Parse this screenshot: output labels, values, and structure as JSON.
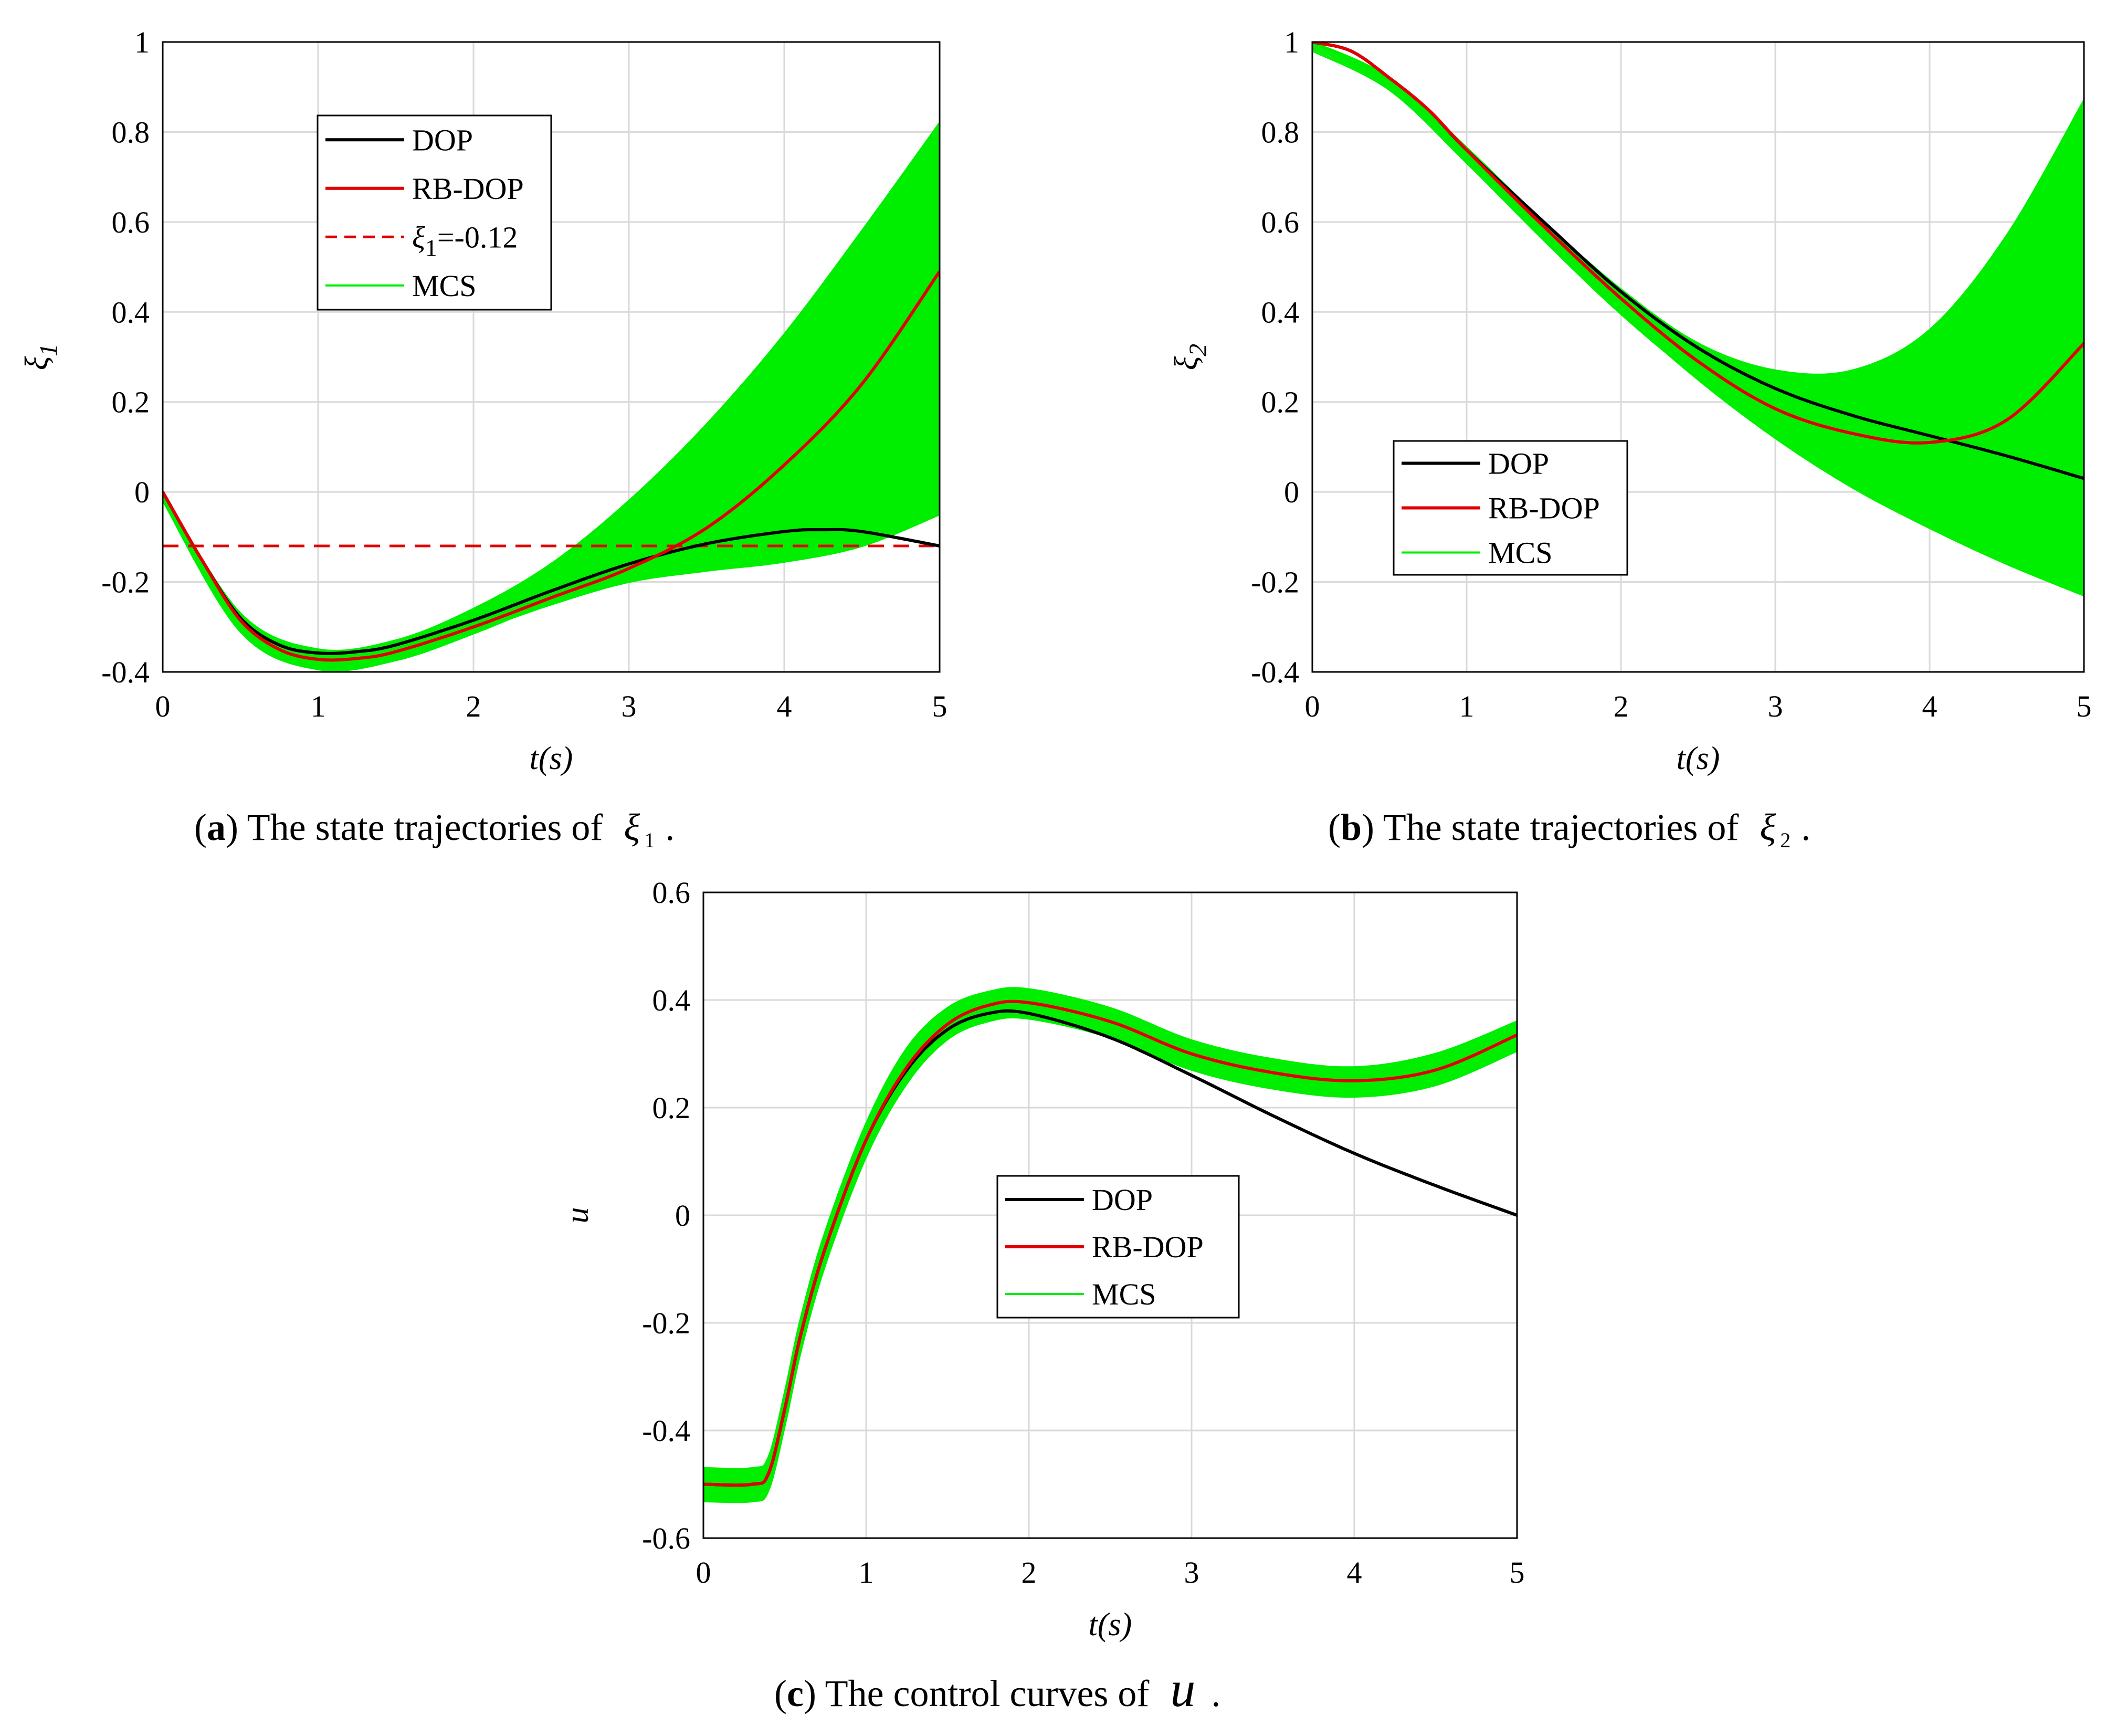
{
  "colors": {
    "dop": "#000000",
    "rbdop": "#e00000",
    "mcs": "#00ee00",
    "constraint": "#e00000",
    "grid": "#d9d9d9"
  },
  "chart_data": [
    {
      "id": "a",
      "type": "line",
      "xlabel": "t(s)",
      "ylabel_symbol": "ξ",
      "ylabel_sub": "1",
      "xlim": [
        0,
        5
      ],
      "ylim": [
        -0.4,
        1
      ],
      "xticks": [
        "0",
        "1",
        "2",
        "3",
        "4",
        "5"
      ],
      "yticks": [
        "-0.4",
        "-0.2",
        "0",
        "0.2",
        "0.4",
        "0.6",
        "0.8",
        "1"
      ],
      "legend_position": "upper-left-inside",
      "legend": [
        {
          "label": "DOP",
          "style": "solid-black"
        },
        {
          "label": "RB-DOP",
          "style": "solid-red"
        },
        {
          "label_symbol": "ξ",
          "label_sub": "1",
          "label_suffix": "=-0.12",
          "style": "dashed-red"
        },
        {
          "label": "MCS",
          "style": "solid-green"
        }
      ],
      "series": [
        {
          "name": "DOP",
          "x": [
            0,
            0.25,
            0.5,
            0.75,
            1.0,
            1.25,
            1.5,
            2.0,
            2.5,
            3.0,
            3.5,
            4.0,
            4.25,
            4.5,
            5.0
          ],
          "y": [
            0,
            -0.15,
            -0.28,
            -0.34,
            -0.358,
            -0.355,
            -0.34,
            -0.285,
            -0.22,
            -0.16,
            -0.115,
            -0.088,
            -0.084,
            -0.088,
            -0.12
          ]
        },
        {
          "name": "RB-DOP",
          "x": [
            0,
            0.25,
            0.5,
            0.75,
            1.0,
            1.25,
            1.5,
            2.0,
            2.5,
            3.0,
            3.5,
            4.0,
            4.5,
            5.0
          ],
          "y": [
            0,
            -0.15,
            -0.285,
            -0.35,
            -0.372,
            -0.37,
            -0.355,
            -0.3,
            -0.235,
            -0.17,
            -0.08,
            0.06,
            0.24,
            0.49
          ]
        },
        {
          "name": "MCS-upper",
          "x": [
            0,
            0.5,
            1.0,
            1.5,
            2.0,
            2.5,
            3.0,
            3.5,
            4.0,
            4.5,
            5.0
          ],
          "y": [
            0,
            -0.27,
            -0.35,
            -0.33,
            -0.26,
            -0.16,
            -0.02,
            0.15,
            0.35,
            0.58,
            0.82
          ]
        },
        {
          "name": "MCS-lower",
          "x": [
            0,
            0.5,
            1.0,
            1.5,
            2.0,
            2.5,
            3.0,
            3.5,
            4.0,
            4.5,
            5.0
          ],
          "y": [
            0,
            -0.3,
            -0.385,
            -0.365,
            -0.31,
            -0.25,
            -0.2,
            -0.175,
            -0.155,
            -0.12,
            -0.05
          ]
        },
        {
          "name": "constraint",
          "x": [
            0,
            5
          ],
          "y": [
            -0.12,
            -0.12
          ]
        }
      ],
      "caption_prefix": "(",
      "caption_letter": "a",
      "caption_text": ") The state trajectories of",
      "caption_symbol": "ξ",
      "caption_sub": "1",
      "caption_end": "."
    },
    {
      "id": "b",
      "type": "line",
      "xlabel": "t(s)",
      "ylabel_symbol": "ξ",
      "ylabel_sub": "2",
      "xlim": [
        0,
        5
      ],
      "ylim": [
        -0.4,
        1
      ],
      "xticks": [
        "0",
        "1",
        "2",
        "3",
        "4",
        "5"
      ],
      "yticks": [
        "-0.4",
        "-0.2",
        "0",
        "0.2",
        "0.4",
        "0.6",
        "0.8",
        "1"
      ],
      "legend_position": "lower-left-inside",
      "legend": [
        {
          "label": "DOP",
          "style": "solid-black"
        },
        {
          "label": "RB-DOP",
          "style": "solid-red"
        },
        {
          "label": "MCS",
          "style": "solid-green"
        }
      ],
      "series": [
        {
          "name": "DOP",
          "x": [
            0,
            0.25,
            0.5,
            0.75,
            1.0,
            1.5,
            2.0,
            2.5,
            3.0,
            3.5,
            4.0,
            4.5,
            5.0
          ],
          "y": [
            1.0,
            0.98,
            0.92,
            0.85,
            0.76,
            0.6,
            0.445,
            0.32,
            0.23,
            0.17,
            0.125,
            0.08,
            0.03
          ]
        },
        {
          "name": "RB-DOP",
          "x": [
            0,
            0.25,
            0.5,
            0.75,
            1.0,
            1.5,
            2.0,
            2.5,
            3.0,
            3.5,
            4.0,
            4.5,
            5.0
          ],
          "y": [
            1.0,
            0.98,
            0.92,
            0.85,
            0.76,
            0.59,
            0.43,
            0.29,
            0.185,
            0.13,
            0.11,
            0.16,
            0.33
          ]
        },
        {
          "name": "MCS-upper",
          "x": [
            0,
            0.5,
            1.0,
            1.5,
            2.0,
            2.5,
            3.0,
            3.5,
            4.0,
            4.5,
            5.0
          ],
          "y": [
            1.0,
            0.92,
            0.765,
            0.6,
            0.45,
            0.33,
            0.27,
            0.27,
            0.36,
            0.57,
            0.87
          ]
        },
        {
          "name": "MCS-lower",
          "x": [
            0,
            0.5,
            1.0,
            1.5,
            2.0,
            2.5,
            3.0,
            3.5,
            4.0,
            4.5,
            5.0
          ],
          "y": [
            1.0,
            0.91,
            0.745,
            0.57,
            0.4,
            0.25,
            0.12,
            0.01,
            -0.08,
            -0.16,
            -0.23
          ]
        }
      ],
      "caption_prefix": "(",
      "caption_letter": "b",
      "caption_text": ") The state trajectories of",
      "caption_symbol": "ξ",
      "caption_sub": "2",
      "caption_end": "."
    },
    {
      "id": "c",
      "type": "line",
      "xlabel": "t(s)",
      "ylabel_symbol": "u",
      "ylabel_sub": "",
      "xlim": [
        0,
        5
      ],
      "ylim": [
        -0.6,
        0.6
      ],
      "xticks": [
        "0",
        "1",
        "2",
        "3",
        "4",
        "5"
      ],
      "yticks": [
        "-0.6",
        "-0.4",
        "-0.2",
        "0",
        "0.2",
        "0.4",
        "0.6"
      ],
      "legend_position": "center-inside",
      "legend": [
        {
          "label": "DOP",
          "style": "solid-black"
        },
        {
          "label": "RB-DOP",
          "style": "solid-red"
        },
        {
          "label": "MCS",
          "style": "solid-green"
        }
      ],
      "series": [
        {
          "name": "DOP",
          "x": [
            0,
            0.3,
            0.4,
            0.5,
            0.6,
            0.75,
            1.0,
            1.25,
            1.5,
            1.75,
            2.0,
            2.5,
            3.0,
            3.5,
            4.0,
            4.5,
            5.0
          ],
          "y": [
            -0.5,
            -0.5,
            -0.48,
            -0.36,
            -0.22,
            -0.06,
            0.14,
            0.27,
            0.345,
            0.375,
            0.375,
            0.33,
            0.26,
            0.185,
            0.115,
            0.055,
            0.0
          ]
        },
        {
          "name": "RB-DOP",
          "x": [
            0,
            0.3,
            0.4,
            0.5,
            0.6,
            0.75,
            1.0,
            1.25,
            1.5,
            1.75,
            2.0,
            2.5,
            3.0,
            3.5,
            4.0,
            4.5,
            5.0
          ],
          "y": [
            -0.5,
            -0.5,
            -0.48,
            -0.36,
            -0.22,
            -0.06,
            0.14,
            0.275,
            0.355,
            0.39,
            0.395,
            0.36,
            0.3,
            0.265,
            0.25,
            0.27,
            0.335
          ]
        },
        {
          "name": "MCS-upper",
          "x": [
            0,
            0.3,
            0.4,
            0.5,
            0.6,
            0.75,
            1.0,
            1.25,
            1.5,
            1.75,
            2.0,
            2.5,
            3.0,
            3.5,
            4.0,
            4.5,
            5.0
          ],
          "y": [
            -0.47,
            -0.47,
            -0.45,
            -0.33,
            -0.19,
            -0.03,
            0.17,
            0.31,
            0.385,
            0.415,
            0.42,
            0.385,
            0.325,
            0.29,
            0.275,
            0.3,
            0.36
          ]
        },
        {
          "name": "MCS-lower",
          "x": [
            0,
            0.3,
            0.4,
            0.5,
            0.6,
            0.75,
            1.0,
            1.25,
            1.5,
            1.75,
            2.0,
            2.5,
            3.0,
            3.5,
            4.0,
            4.5,
            5.0
          ],
          "y": [
            -0.53,
            -0.53,
            -0.51,
            -0.39,
            -0.25,
            -0.09,
            0.11,
            0.245,
            0.33,
            0.365,
            0.37,
            0.335,
            0.275,
            0.24,
            0.225,
            0.245,
            0.31
          ]
        }
      ],
      "caption_prefix": "(",
      "caption_letter": "c",
      "caption_text": ") The control curves of",
      "caption_symbol": "u",
      "caption_sub": "",
      "caption_end": "."
    }
  ]
}
